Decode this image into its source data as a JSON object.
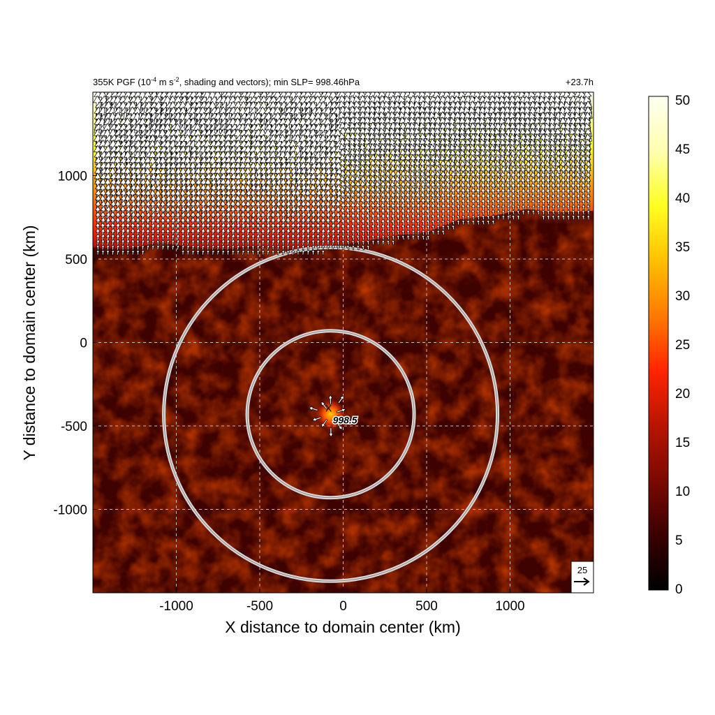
{
  "chart_data": {
    "type": "heatmap",
    "title_left_prefix": "355K PGF (10",
    "title_left_exp1": "-4",
    "title_left_mid": " m s",
    "title_left_exp2": "-2",
    "title_left_suffix": ", shading and vectors); min SLP= 998.46hPa",
    "title_right": "+23.7h",
    "xlabel": "X distance to domain center (km)",
    "ylabel": "Y distance to domain center (km)",
    "xlim": [
      -1500,
      1500
    ],
    "ylim": [
      -1500,
      1500
    ],
    "xticks": [
      -1000,
      -500,
      0,
      500,
      1000
    ],
    "yticks": [
      1000,
      500,
      0,
      -500,
      -1000
    ],
    "grid": true,
    "colorbar": {
      "min": 0,
      "max": 50,
      "ticks": [
        "50",
        "45",
        "40",
        "35",
        "30",
        "25",
        "20",
        "15",
        "10",
        "5",
        "0"
      ],
      "colors": [
        "#000000",
        "#3a0000",
        "#7a0a00",
        "#b81400",
        "#ff2400",
        "#ff7a00",
        "#ffc000",
        "#ffff20",
        "#ffffb0",
        "#fffff2"
      ]
    },
    "center": {
      "x": -75,
      "y": -430,
      "label": "998.5",
      "marker": "X"
    },
    "circles_km": [
      {
        "radius": 500
      },
      {
        "radius": 1000
      }
    ],
    "reference_vector": {
      "label": "25",
      "value": 25
    },
    "field_summary": {
      "north_band_y_above_km": 600,
      "north_band_value_range": [
        20,
        50
      ],
      "south_background_value_range": [
        3,
        12
      ]
    }
  }
}
